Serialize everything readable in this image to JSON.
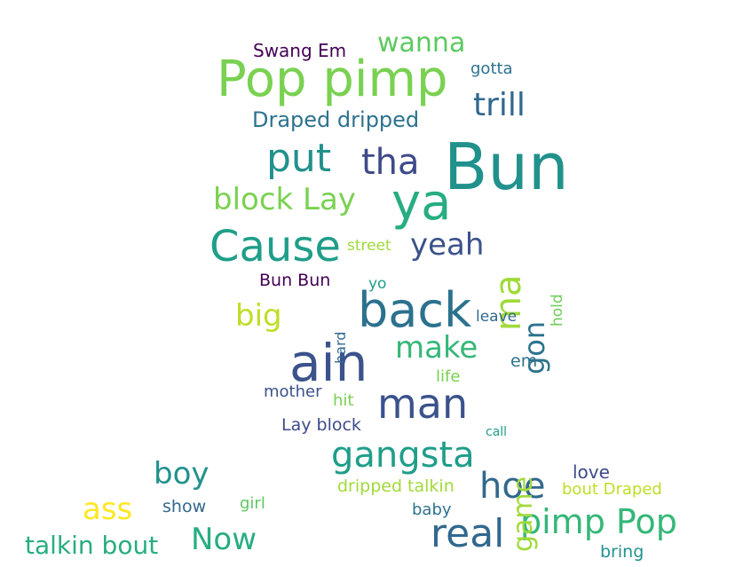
{
  "words": [
    {
      "text": "Bun",
      "color": "#21918c"
    },
    {
      "text": "ain",
      "color": "#3b528b"
    },
    {
      "text": "back",
      "color": "#2c728e"
    },
    {
      "text": "Pop pimp",
      "color": "#7ad151"
    },
    {
      "text": "ya",
      "color": "#27ad81"
    },
    {
      "text": "Cause",
      "color": "#1f9e89"
    },
    {
      "text": "man",
      "color": "#3b528b"
    },
    {
      "text": "real",
      "color": "#31688e"
    },
    {
      "text": "put",
      "color": "#21918c"
    },
    {
      "text": "tha",
      "color": "#3e4a89"
    },
    {
      "text": "ma",
      "color": "#a0da39"
    },
    {
      "text": "pimp Pop",
      "color": "#35b779"
    },
    {
      "text": "hoe",
      "color": "#31688e"
    },
    {
      "text": "gangsta",
      "color": "#1f9e89"
    },
    {
      "text": "yeah",
      "color": "#3b528b"
    },
    {
      "text": "block Lay",
      "color": "#7ad151"
    },
    {
      "text": "make",
      "color": "#35b779"
    },
    {
      "text": "big",
      "color": "#bddf26"
    },
    {
      "text": "gon",
      "color": "#2c728e"
    },
    {
      "text": "trill",
      "color": "#31688e"
    },
    {
      "text": "boy",
      "color": "#21918c"
    },
    {
      "text": "game",
      "color": "#a0da39"
    },
    {
      "text": "Now",
      "color": "#27ad81"
    },
    {
      "text": "ass",
      "color": "#fde725"
    },
    {
      "text": "wanna",
      "color": "#5ec962"
    },
    {
      "text": "talkin bout",
      "color": "#27ad81"
    },
    {
      "text": "Draped dripped",
      "color": "#2c728e"
    },
    {
      "text": "Swang Em",
      "color": "#440154"
    },
    {
      "text": "gotta",
      "color": "#2c728e"
    },
    {
      "text": "street",
      "color": "#a0da39"
    },
    {
      "text": "Bun Bun",
      "color": "#440154"
    },
    {
      "text": "yo",
      "color": "#1f9e89"
    },
    {
      "text": "hard",
      "color": "#31688e"
    },
    {
      "text": "hold",
      "color": "#6ece58"
    },
    {
      "text": "leave",
      "color": "#31688e"
    },
    {
      "text": "em",
      "color": "#2c728e"
    },
    {
      "text": "mother",
      "color": "#3b528b"
    },
    {
      "text": "hit",
      "color": "#7ad151"
    },
    {
      "text": "life",
      "color": "#7ad151"
    },
    {
      "text": "Lay block",
      "color": "#3e4a89"
    },
    {
      "text": "call",
      "color": "#1f9e89"
    },
    {
      "text": "dripped talkin",
      "color": "#a0da39"
    },
    {
      "text": "love",
      "color": "#3e4a89"
    },
    {
      "text": "bout Draped",
      "color": "#bddf26"
    },
    {
      "text": "show",
      "color": "#31688e"
    },
    {
      "text": "girl",
      "color": "#5ec962"
    },
    {
      "text": "baby",
      "color": "#2c728e"
    },
    {
      "text": "bring",
      "color": "#21918c"
    }
  ]
}
